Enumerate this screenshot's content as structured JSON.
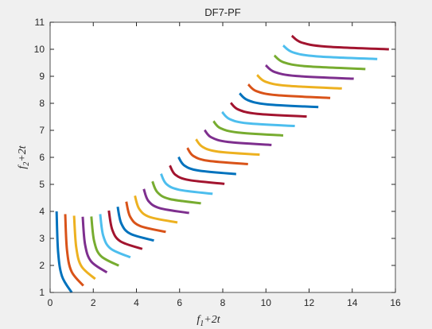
{
  "chart_data": {
    "type": "line",
    "title": "DF7-PF",
    "xlabel": [
      "f",
      "1",
      "+2t"
    ],
    "ylabel": [
      "f",
      "2",
      "+2t"
    ],
    "xlim": [
      0,
      16
    ],
    "xticks": [
      0,
      2,
      4,
      6,
      8,
      10,
      12,
      14,
      16
    ],
    "ylim": [
      1,
      11
    ],
    "yticks": [
      1,
      2,
      3,
      4,
      5,
      6,
      7,
      8,
      9,
      10,
      11
    ],
    "grid": false,
    "series": [
      {
        "color": "#0072BD",
        "x": [
          0.3,
          0.37,
          0.55,
          1.0
        ],
        "values": [
          4.0,
          2.5,
          1.6,
          1.0
        ]
      },
      {
        "color": "#D95319",
        "x": [
          0.7,
          0.78,
          0.99,
          1.54
        ],
        "values": [
          3.9,
          2.58,
          1.78,
          1.25
        ]
      },
      {
        "color": "#EDB120",
        "x": [
          1.11,
          1.21,
          1.45,
          2.09
        ],
        "values": [
          3.84,
          2.67,
          1.97,
          1.5
        ]
      },
      {
        "color": "#7E2F8E",
        "x": [
          1.51,
          1.62,
          1.9,
          2.63
        ],
        "values": [
          3.8,
          2.77,
          2.15,
          1.74
        ]
      },
      {
        "color": "#77AC30",
        "x": [
          1.91,
          2.04,
          2.35,
          3.18
        ],
        "values": [
          3.81,
          2.9,
          2.35,
          1.99
        ]
      },
      {
        "color": "#4DBEEE",
        "x": [
          2.32,
          2.46,
          2.81,
          3.72
        ],
        "values": [
          3.9,
          3.1,
          2.62,
          2.3
        ]
      },
      {
        "color": "#A2142F",
        "x": [
          2.72,
          2.88,
          3.26,
          4.27
        ],
        "values": [
          4.03,
          3.32,
          2.89,
          2.61
        ]
      },
      {
        "color": "#0072BD",
        "x": [
          3.13,
          3.3,
          3.72,
          4.81
        ],
        "values": [
          4.17,
          3.55,
          3.17,
          2.92
        ]
      },
      {
        "color": "#D95319",
        "x": [
          3.53,
          3.71,
          4.17,
          5.36
        ],
        "values": [
          4.36,
          3.8,
          3.46,
          3.24
        ]
      },
      {
        "color": "#EDB120",
        "x": [
          3.93,
          4.13,
          4.62,
          5.9
        ],
        "values": [
          4.58,
          4.09,
          3.79,
          3.59
        ]
      },
      {
        "color": "#7E2F8E",
        "x": [
          4.34,
          4.55,
          5.08,
          6.44
        ],
        "values": [
          4.83,
          4.39,
          4.12,
          3.94
        ]
      },
      {
        "color": "#77AC30",
        "x": [
          4.74,
          4.97,
          5.53,
          6.99
        ],
        "values": [
          5.11,
          4.71,
          4.46,
          4.3
        ]
      },
      {
        "color": "#4DBEEE",
        "x": [
          5.14,
          5.38,
          5.98,
          7.53
        ],
        "values": [
          5.39,
          5.02,
          4.8,
          4.65
        ]
      },
      {
        "color": "#A2142F",
        "x": [
          5.55,
          5.8,
          6.44,
          8.08
        ],
        "values": [
          5.7,
          5.36,
          5.16,
          5.02
        ]
      },
      {
        "color": "#0072BD",
        "x": [
          5.95,
          6.22,
          6.88,
          8.62
        ],
        "values": [
          6.01,
          5.7,
          5.51,
          5.38
        ]
      },
      {
        "color": "#D95319",
        "x": [
          6.36,
          6.64,
          7.34,
          9.17
        ],
        "values": [
          6.35,
          6.05,
          5.87,
          5.75
        ]
      },
      {
        "color": "#EDB120",
        "x": [
          6.76,
          7.06,
          7.79,
          9.71
        ],
        "values": [
          6.67,
          6.39,
          6.21,
          6.1
        ]
      },
      {
        "color": "#7E2F8E",
        "x": [
          7.16,
          7.47,
          8.25,
          10.26
        ],
        "values": [
          7.01,
          6.74,
          6.57,
          6.46
        ]
      },
      {
        "color": "#77AC30",
        "x": [
          7.57,
          7.89,
          8.7,
          10.8
        ],
        "values": [
          7.34,
          7.08,
          6.92,
          6.81
        ]
      },
      {
        "color": "#4DBEEE",
        "x": [
          7.97,
          8.31,
          9.15,
          11.34
        ],
        "values": [
          7.68,
          7.42,
          7.26,
          7.16
        ]
      },
      {
        "color": "#A2142F",
        "x": [
          8.37,
          8.72,
          9.6,
          11.89
        ],
        "values": [
          8.02,
          7.77,
          7.61,
          7.51
        ]
      },
      {
        "color": "#0072BD",
        "x": [
          8.78,
          9.15,
          10.06,
          12.43
        ],
        "values": [
          8.37,
          8.12,
          7.96,
          7.86
        ]
      },
      {
        "color": "#D95319",
        "x": [
          9.18,
          9.56,
          10.51,
          12.98
        ],
        "values": [
          8.7,
          8.45,
          8.3,
          8.2
        ]
      },
      {
        "color": "#EDB120",
        "x": [
          9.59,
          9.98,
          10.97,
          13.52
        ],
        "values": [
          9.05,
          8.8,
          8.65,
          8.55
        ]
      },
      {
        "color": "#7E2F8E",
        "x": [
          9.99,
          10.4,
          11.42,
          14.07
        ],
        "values": [
          9.41,
          9.16,
          9.01,
          8.91
        ]
      },
      {
        "color": "#77AC30",
        "x": [
          10.39,
          10.81,
          11.87,
          14.61
        ],
        "values": [
          9.77,
          9.52,
          9.37,
          9.27
        ]
      },
      {
        "color": "#4DBEEE",
        "x": [
          10.8,
          11.24,
          12.33,
          15.16
        ],
        "values": [
          10.14,
          9.89,
          9.74,
          9.64
        ]
      },
      {
        "color": "#A2142F",
        "x": [
          11.2,
          11.65,
          12.78,
          15.7
        ],
        "values": [
          10.5,
          10.25,
          10.1,
          10.0
        ]
      }
    ]
  }
}
